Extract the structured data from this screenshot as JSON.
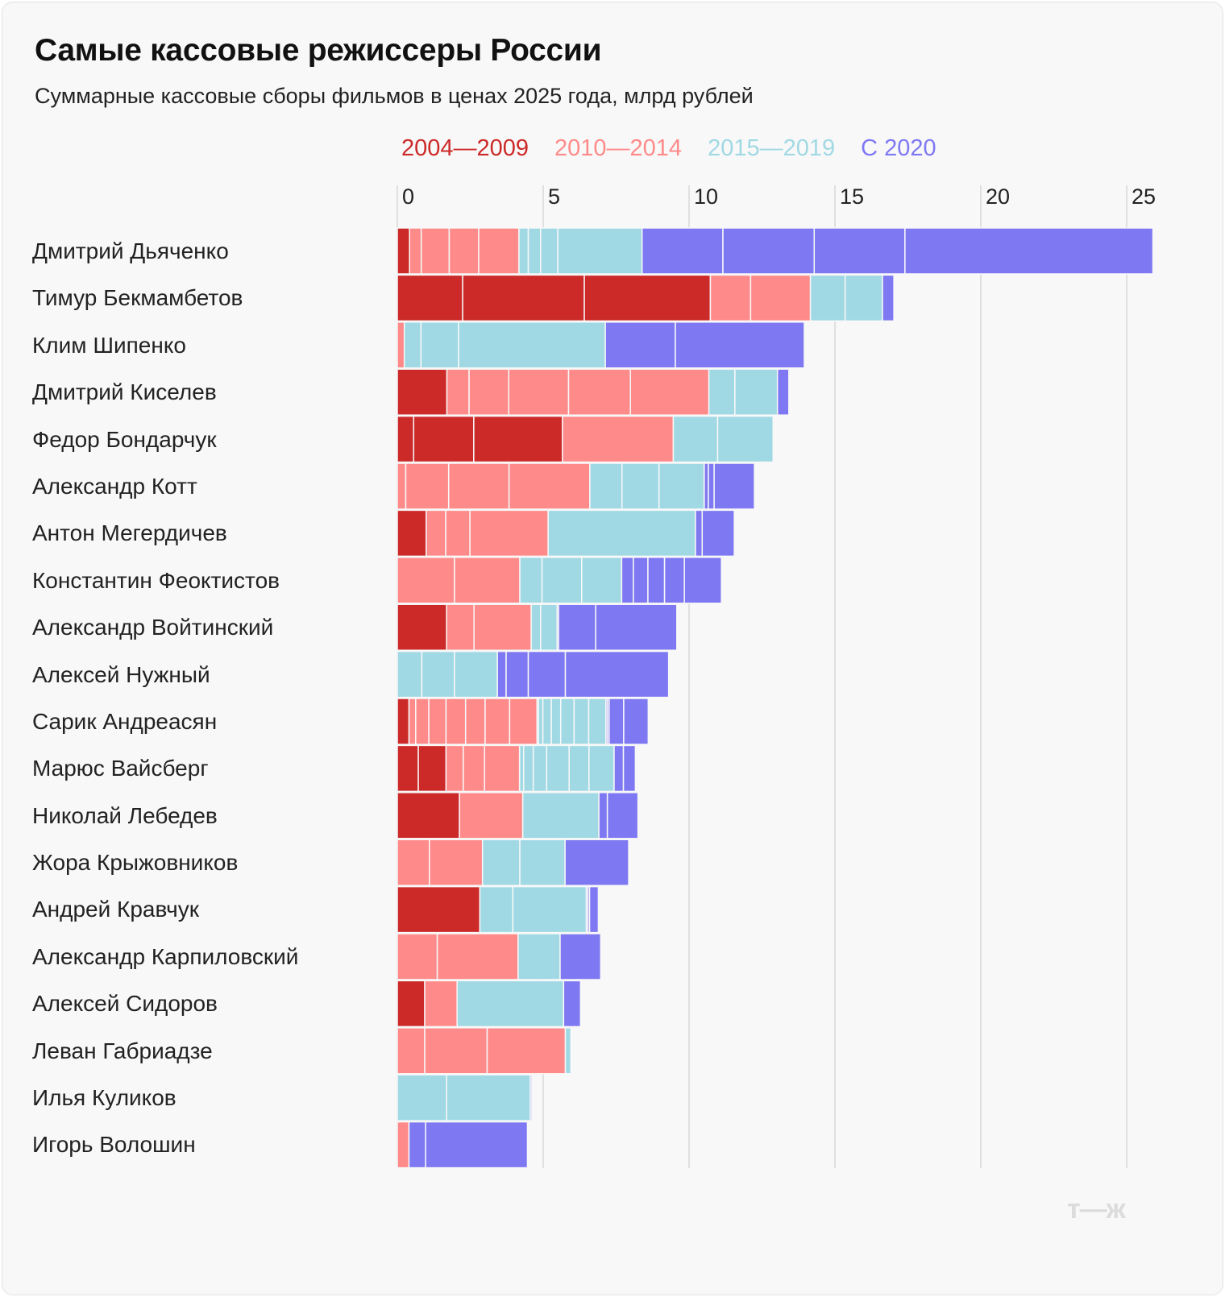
{
  "title": "Самые кассовые режиссеры России",
  "subtitle": "Суммарные кассовые сборы фильмов в ценах 2025 года, млрд рублей",
  "logo": "т—ж",
  "chart_data": {
    "type": "bar",
    "orientation": "horizontal",
    "stacked": true,
    "xlim": [
      0,
      26.2
    ],
    "xticks": [
      "0",
      "5",
      "10",
      "15",
      "20",
      "25"
    ],
    "grid": true,
    "legend_position": "top",
    "periods": [
      {
        "name": "2004—2009",
        "color": "#cc2a29"
      },
      {
        "name": "2010—2014",
        "color": "#ff8a8a"
      },
      {
        "name": "2015—2019",
        "color": "#a0d9e4"
      },
      {
        "name": "С 2020",
        "color": "#7e78f2"
      }
    ],
    "rows": [
      {
        "name": "Дмитрий Дьяченко",
        "segments": [
          [
            0,
            0.42
          ],
          [
            1,
            0.4
          ],
          [
            1,
            0.96
          ],
          [
            1,
            1.01
          ],
          [
            1,
            1.38
          ],
          [
            2,
            0.32
          ],
          [
            2,
            0.42
          ],
          [
            2,
            0.59
          ],
          [
            2,
            2.89
          ],
          [
            3,
            2.77
          ],
          [
            3,
            3.13
          ],
          [
            3,
            3.11
          ],
          [
            3,
            8.5
          ]
        ]
      },
      {
        "name": "Тимур Бекмамбетов",
        "segments": [
          [
            0,
            2.24
          ],
          [
            0,
            4.17
          ],
          [
            0,
            4.32
          ],
          [
            1,
            1.38
          ],
          [
            1,
            2.05
          ],
          [
            2,
            1.19
          ],
          [
            2,
            1.28
          ],
          [
            3,
            0.39
          ]
        ]
      },
      {
        "name": "Клим Шипенко",
        "segments": [
          [
            1,
            0.24
          ],
          [
            2,
            0.57
          ],
          [
            2,
            1.29
          ],
          [
            2,
            5.03
          ],
          [
            3,
            2.4
          ],
          [
            3,
            4.42
          ]
        ]
      },
      {
        "name": "Дмитрий Киселев",
        "segments": [
          [
            0,
            1.7
          ],
          [
            1,
            0.76
          ],
          [
            1,
            1.36
          ],
          [
            1,
            2.05
          ],
          [
            1,
            2.12
          ],
          [
            1,
            2.69
          ],
          [
            2,
            0.89
          ],
          [
            2,
            1.46
          ],
          [
            3,
            0.39
          ]
        ]
      },
      {
        "name": "Федор Бондарчук",
        "segments": [
          [
            0,
            0.56
          ],
          [
            0,
            2.06
          ],
          [
            0,
            3.04
          ],
          [
            1,
            3.8
          ],
          [
            2,
            1.52
          ],
          [
            2,
            1.9
          ]
        ]
      },
      {
        "name": "Александр Котт",
        "segments": [
          [
            1,
            0.29
          ],
          [
            1,
            1.47
          ],
          [
            1,
            2.07
          ],
          [
            1,
            2.77
          ],
          [
            2,
            1.1
          ],
          [
            2,
            1.27
          ],
          [
            2,
            1.55
          ],
          [
            3,
            0.14
          ],
          [
            3,
            0.2
          ],
          [
            3,
            1.38
          ]
        ]
      },
      {
        "name": "Антон Мегердичев",
        "segments": [
          [
            0,
            0.99
          ],
          [
            1,
            0.67
          ],
          [
            1,
            0.83
          ],
          [
            1,
            2.68
          ],
          [
            2,
            5.05
          ],
          [
            3,
            0.23
          ],
          [
            3,
            1.1
          ]
        ]
      },
      {
        "name": "Константин Феоктистов",
        "segments": [
          [
            1,
            1.96
          ],
          [
            1,
            2.24
          ],
          [
            2,
            0.76
          ],
          [
            2,
            1.36
          ],
          [
            2,
            1.37
          ],
          [
            3,
            0.4
          ],
          [
            3,
            0.5
          ],
          [
            3,
            0.57
          ],
          [
            3,
            0.68
          ],
          [
            3,
            1.27
          ]
        ]
      },
      {
        "name": "Александр Войтинский",
        "segments": [
          [
            0,
            1.69
          ],
          [
            1,
            0.94
          ],
          [
            1,
            1.96
          ],
          [
            2,
            0.32
          ],
          [
            2,
            0.57
          ],
          [
            3,
            0.05
          ],
          [
            3,
            1.27
          ],
          [
            3,
            2.78
          ]
        ]
      },
      {
        "name": "Алексей Нужный",
        "segments": [
          [
            2,
            0.84
          ],
          [
            2,
            1.12
          ],
          [
            2,
            1.47
          ],
          [
            3,
            0.3
          ],
          [
            3,
            0.76
          ],
          [
            3,
            1.27
          ],
          [
            3,
            3.54
          ]
        ]
      },
      {
        "name": "Сарик Андреасян",
        "segments": [
          [
            0,
            0.4
          ],
          [
            1,
            0.23
          ],
          [
            1,
            0.45
          ],
          [
            1,
            0.59
          ],
          [
            1,
            0.67
          ],
          [
            1,
            0.67
          ],
          [
            1,
            0.84
          ],
          [
            1,
            0.94
          ],
          [
            2,
            0.05
          ],
          [
            2,
            0.15
          ],
          [
            2,
            0.29
          ],
          [
            2,
            0.32
          ],
          [
            2,
            0.46
          ],
          [
            2,
            0.5
          ],
          [
            2,
            0.59
          ],
          [
            3,
            0.05
          ],
          [
            3,
            0.06
          ],
          [
            3,
            0.5
          ],
          [
            3,
            0.84
          ]
        ]
      },
      {
        "name": "Марюс Вайсберг",
        "segments": [
          [
            0,
            0.72
          ],
          [
            0,
            0.95
          ],
          [
            1,
            0.59
          ],
          [
            1,
            0.73
          ],
          [
            1,
            1.2
          ],
          [
            2,
            0.14
          ],
          [
            2,
            0.33
          ],
          [
            2,
            0.46
          ],
          [
            2,
            0.77
          ],
          [
            2,
            0.68
          ],
          [
            2,
            0.86
          ],
          [
            3,
            0.32
          ],
          [
            3,
            0.41
          ]
        ]
      },
      {
        "name": "Николай Лебедев",
        "segments": [
          [
            0,
            2.13
          ],
          [
            1,
            2.17
          ],
          [
            2,
            2.61
          ],
          [
            3,
            0.29
          ],
          [
            3,
            1.05
          ]
        ]
      },
      {
        "name": "Жора Крыжовников",
        "segments": [
          [
            1,
            1.1
          ],
          [
            1,
            1.82
          ],
          [
            2,
            1.28
          ],
          [
            2,
            1.55
          ],
          [
            3,
            2.18
          ]
        ]
      },
      {
        "name": "Андрей Кравчук",
        "segments": [
          [
            0,
            2.83
          ],
          [
            2,
            1.13
          ],
          [
            2,
            2.52
          ],
          [
            3,
            0.05
          ],
          [
            3,
            0.06
          ],
          [
            3,
            0.3
          ]
        ]
      },
      {
        "name": "Александр Карпиловский",
        "segments": [
          [
            1,
            1.37
          ],
          [
            1,
            2.77
          ],
          [
            2,
            1.44
          ],
          [
            3,
            1.39
          ]
        ]
      },
      {
        "name": "Алексей Сидоров",
        "segments": [
          [
            0,
            0.94
          ],
          [
            1,
            1.11
          ],
          [
            2,
            3.65
          ],
          [
            3,
            0.58
          ]
        ]
      },
      {
        "name": "Леван Габриадзе",
        "segments": [
          [
            1,
            0.94
          ],
          [
            1,
            2.14
          ],
          [
            1,
            2.68
          ],
          [
            2,
            0.19
          ]
        ]
      },
      {
        "name": "Илья Куликов",
        "segments": [
          [
            2,
            1.69
          ],
          [
            2,
            2.87
          ],
          [
            3,
            0.05
          ]
        ]
      },
      {
        "name": "Игорь Волошин",
        "segments": [
          [
            1,
            0.4
          ],
          [
            3,
            0.57
          ],
          [
            3,
            3.49
          ]
        ]
      }
    ]
  }
}
